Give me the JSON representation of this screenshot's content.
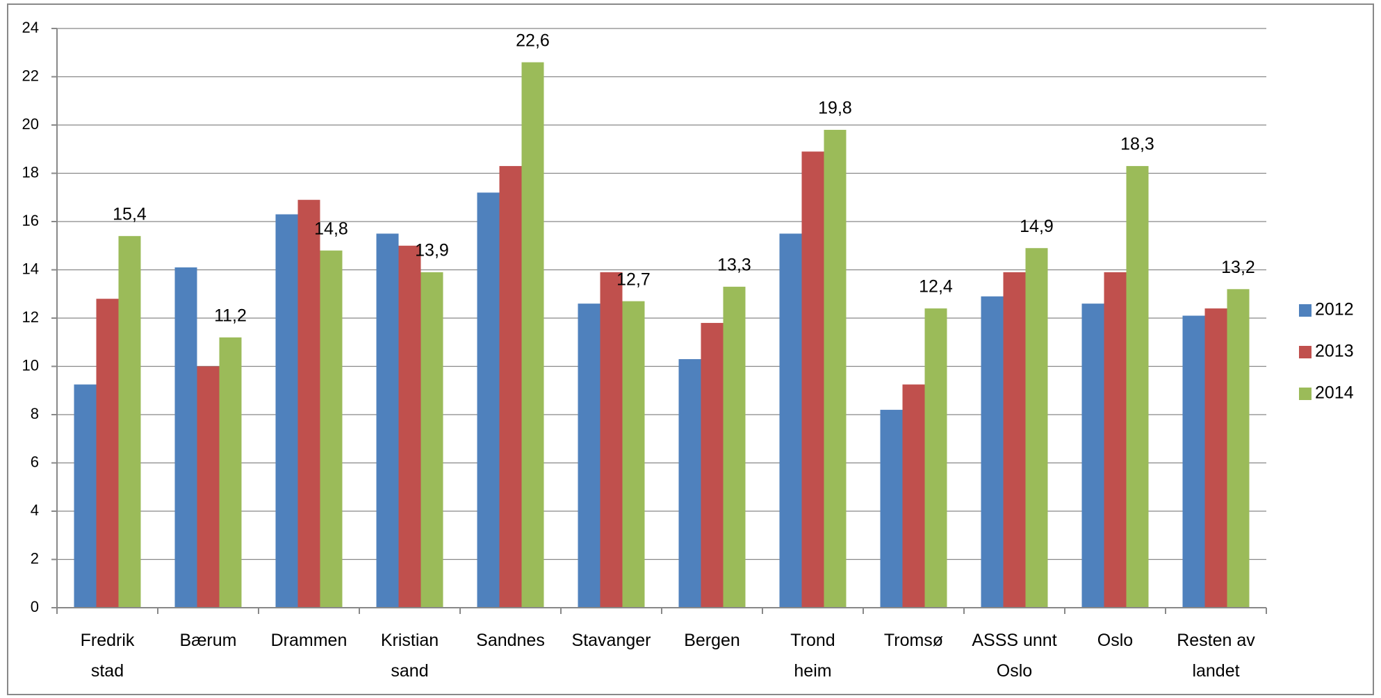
{
  "chart_data": {
    "type": "bar",
    "categories": [
      [
        "Fredrik",
        "stad"
      ],
      [
        "Bærum"
      ],
      [
        "Drammen"
      ],
      [
        "Kristian",
        "sand"
      ],
      [
        "Sandnes"
      ],
      [
        "Stavanger"
      ],
      [
        "Bergen"
      ],
      [
        "Trond",
        "heim"
      ],
      [
        "Tromsø"
      ],
      [
        "ASSS unnt",
        "Oslo"
      ],
      [
        "Oslo"
      ],
      [
        "Resten av",
        "landet"
      ]
    ],
    "series": [
      {
        "name": "2012",
        "color": "#4f81bd",
        "values": [
          9.25,
          14.1,
          16.3,
          15.5,
          17.2,
          12.6,
          10.3,
          15.5,
          8.2,
          12.9,
          12.6,
          12.1
        ]
      },
      {
        "name": "2013",
        "color": "#c0504d",
        "values": [
          12.8,
          10.0,
          16.9,
          15.0,
          18.3,
          13.9,
          11.8,
          18.9,
          9.25,
          13.9,
          13.9,
          12.4
        ]
      },
      {
        "name": "2014",
        "color": "#9bbb59",
        "values": [
          15.4,
          11.2,
          14.8,
          13.9,
          22.6,
          12.7,
          13.3,
          19.8,
          12.4,
          14.9,
          18.3,
          13.2
        ],
        "value_labels": [
          "15,4",
          "11,2",
          "14,8",
          "13,9",
          "22,6",
          "12,7",
          "13,3",
          "19,8",
          "12,4",
          "14,9",
          "18,3",
          "13,2"
        ]
      }
    ],
    "ylim": [
      0,
      24
    ],
    "yticks": [
      0,
      2,
      4,
      6,
      8,
      10,
      12,
      14,
      16,
      18,
      20,
      22,
      24
    ],
    "grid": true,
    "legend": "right"
  }
}
